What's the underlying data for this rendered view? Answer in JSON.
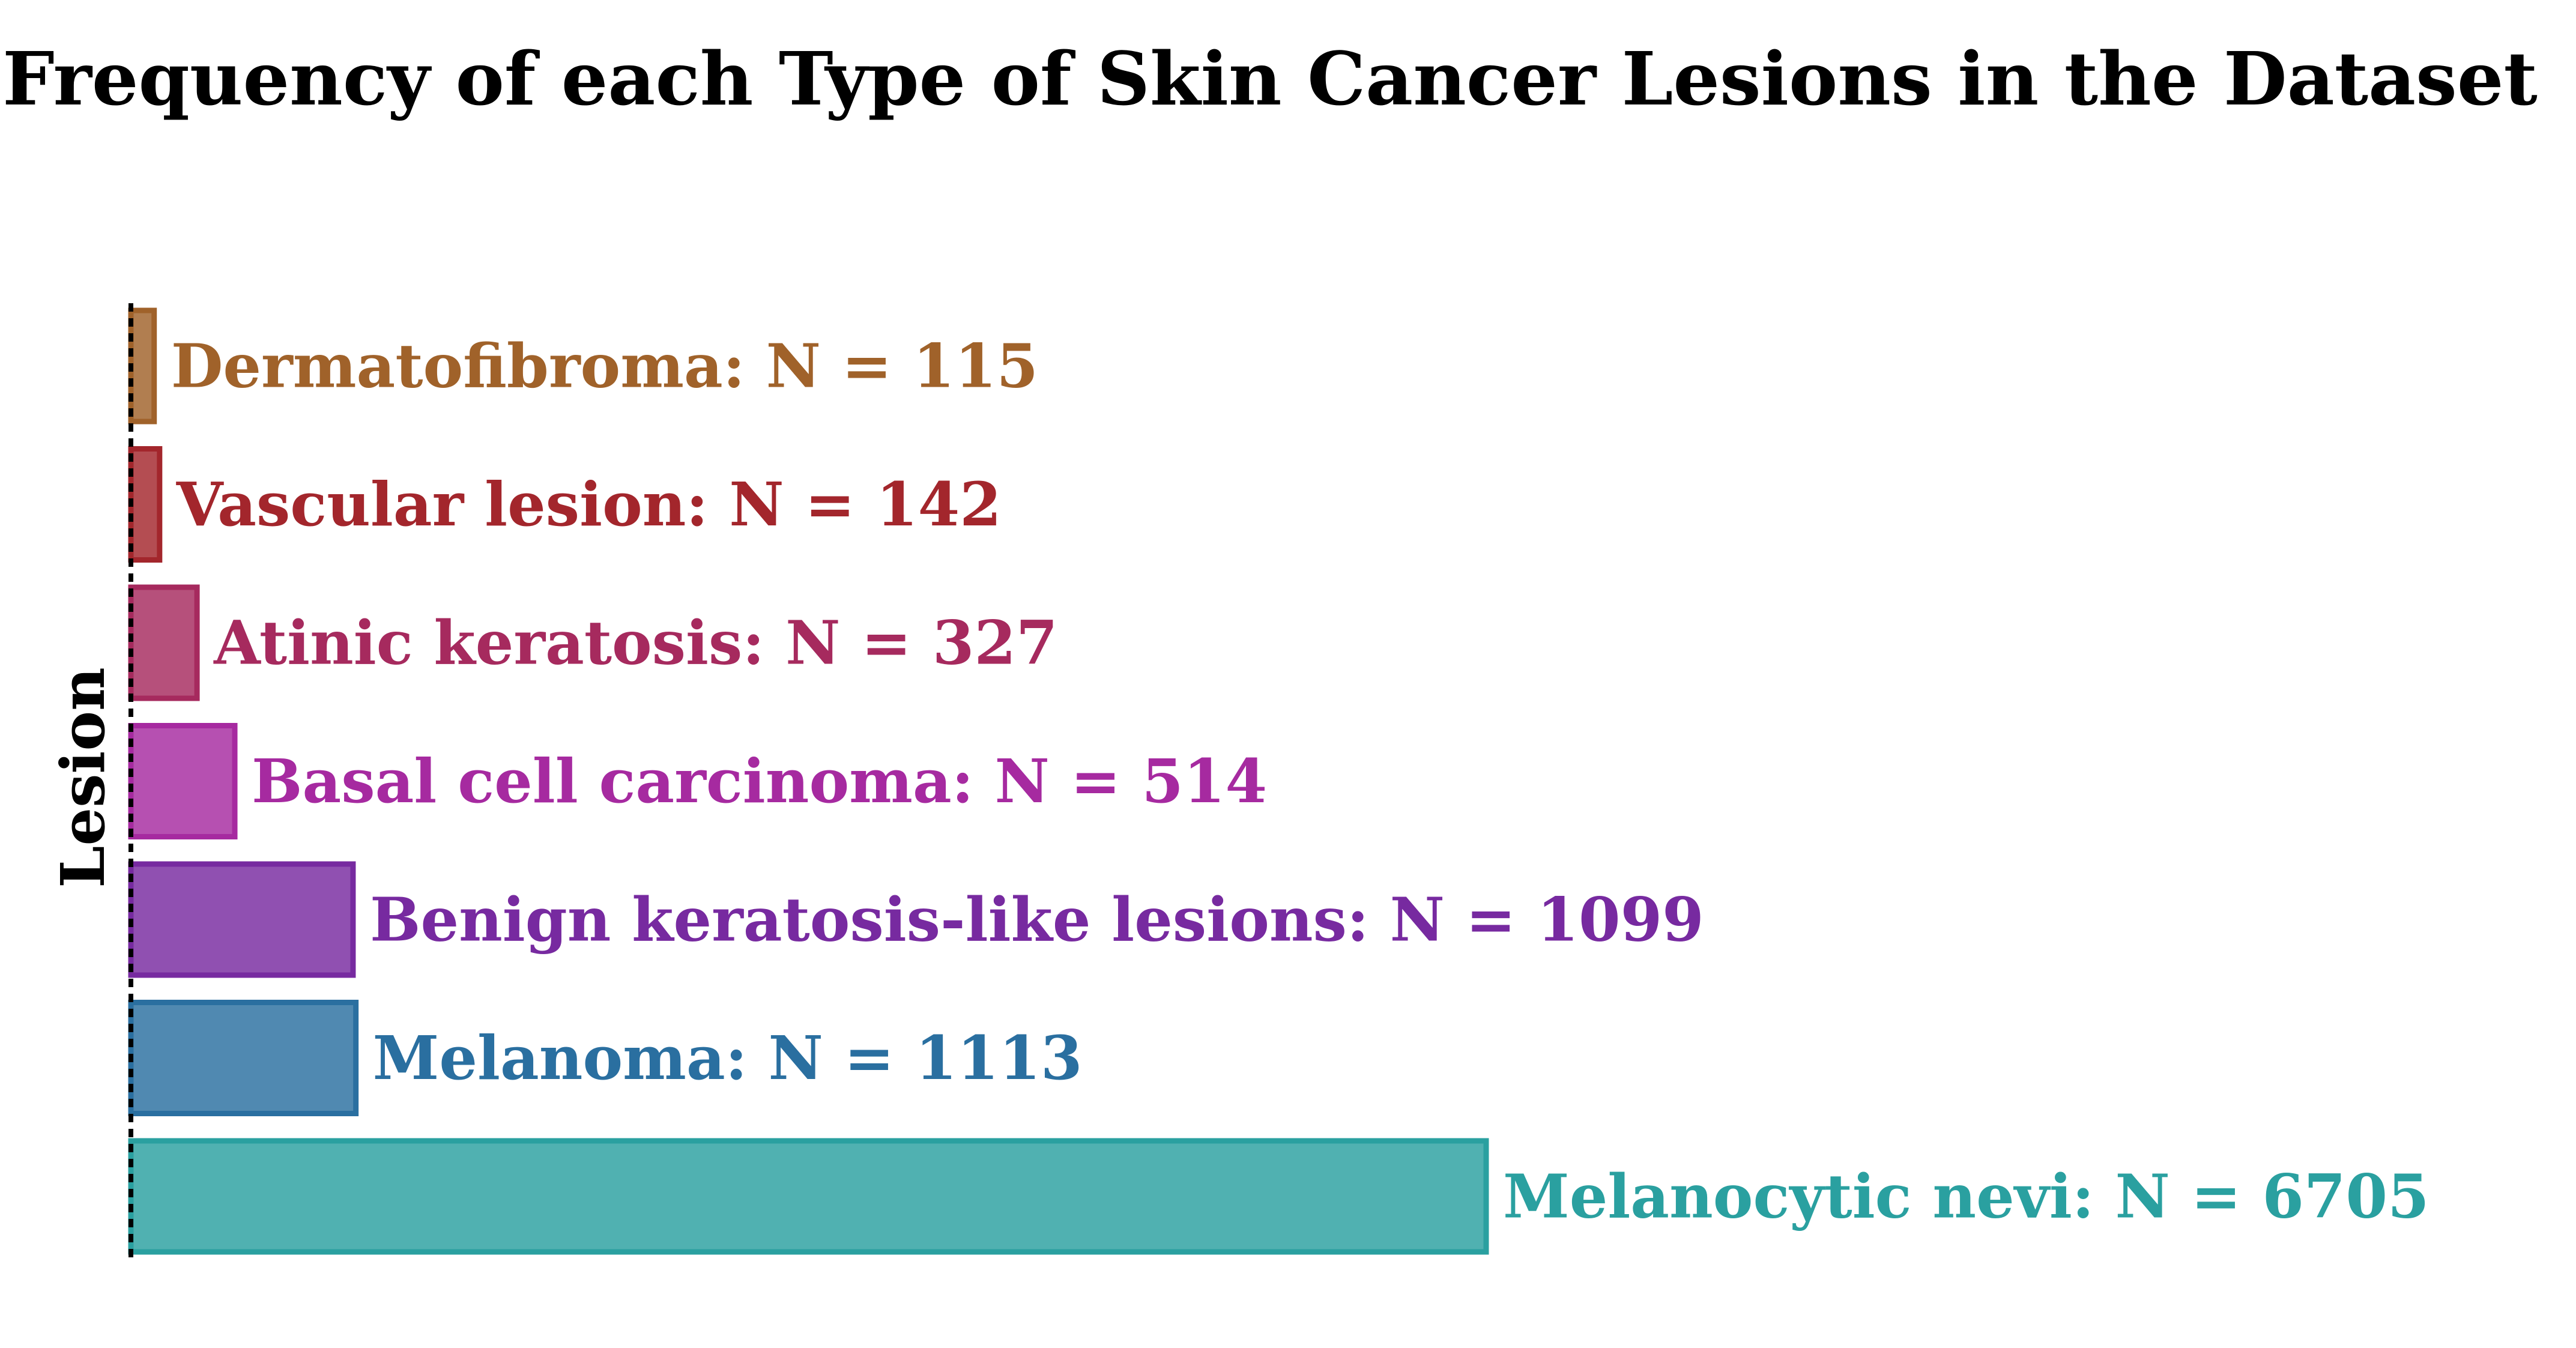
{
  "chart_data": {
    "type": "bar",
    "orientation": "horizontal",
    "title": "Frequency of each Type of Skin Cancer Lesions in the Dataset",
    "ylabel": "Lesion",
    "xlabel": "",
    "grid": false,
    "legend": "none",
    "xlim": [
      0,
      11500
    ],
    "categories": [
      "Dermatofibroma",
      "Vascular lesion",
      "Atinic keratosis",
      "Basal cell carcinoma",
      "Benign keratosis-like lesions",
      "Melanoma",
      "Melanocytic nevi"
    ],
    "values": [
      115,
      142,
      327,
      514,
      1099,
      1113,
      6705
    ],
    "labels": [
      "Dermatofibroma: N = 115",
      "Vascular lesion: N = 142",
      "Atinic keratosis: N = 327",
      "Basal cell carcinoma: N = 514",
      "Benign keratosis-like lesions: N = 1099",
      "Melanoma: N = 1113",
      "Melanocytic nevi: N = 6705"
    ],
    "colors": [
      "#a0622a",
      "#a3262c",
      "#a62a5e",
      "#a62aa0",
      "#772aa0",
      "#2a6fa0",
      "#2aa0a0"
    ]
  }
}
